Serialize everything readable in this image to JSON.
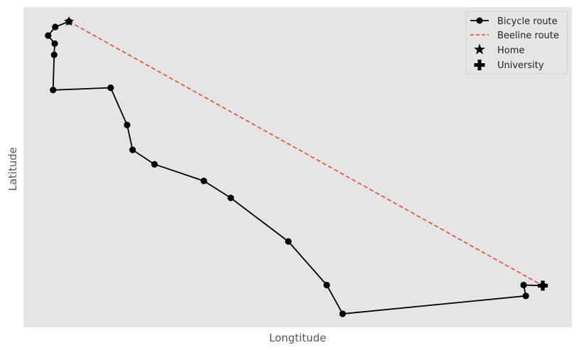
{
  "chart_data": {
    "type": "line",
    "title": "",
    "xlabel": "Longtitude",
    "ylabel": "Latitude",
    "xlim": [
      0,
      100
    ],
    "ylim": [
      0,
      100
    ],
    "grid": false,
    "axis_ticks": false,
    "legend_position": "top-right",
    "series": [
      {
        "name": "Bicycle route",
        "style": "solid-line-circle-markers",
        "color": "#000000",
        "x": [
          8.3,
          5.8,
          4.5,
          5.7,
          5.6,
          5.4,
          15.9,
          18.9,
          19.9,
          23.9,
          32.9,
          37.8,
          48.3,
          55.3,
          58.2,
          91.6,
          91.2,
          94.7
        ],
        "y": [
          95.5,
          93.8,
          91.1,
          88.6,
          85.1,
          74.1,
          74.8,
          63.2,
          55.4,
          50.9,
          45.7,
          40.4,
          26.8,
          13.2,
          4.2,
          9.8,
          13.2,
          13.0
        ]
      },
      {
        "name": "Beeline route",
        "style": "dashed-line",
        "color": "#e24a33",
        "x": [
          8.3,
          94.7
        ],
        "y": [
          95.5,
          13.0
        ]
      }
    ],
    "markers": [
      {
        "name": "Home",
        "symbol": "star",
        "x": 8.3,
        "y": 95.5
      },
      {
        "name": "University",
        "symbol": "plus",
        "x": 94.7,
        "y": 13.0
      }
    ],
    "legend": [
      "Bicycle route",
      "Beeline route",
      "Home",
      "University"
    ]
  },
  "colors": {
    "plot_background": "#e5e5e5",
    "route": "#000000",
    "beeline": "#e24a33",
    "label": "#555555"
  }
}
